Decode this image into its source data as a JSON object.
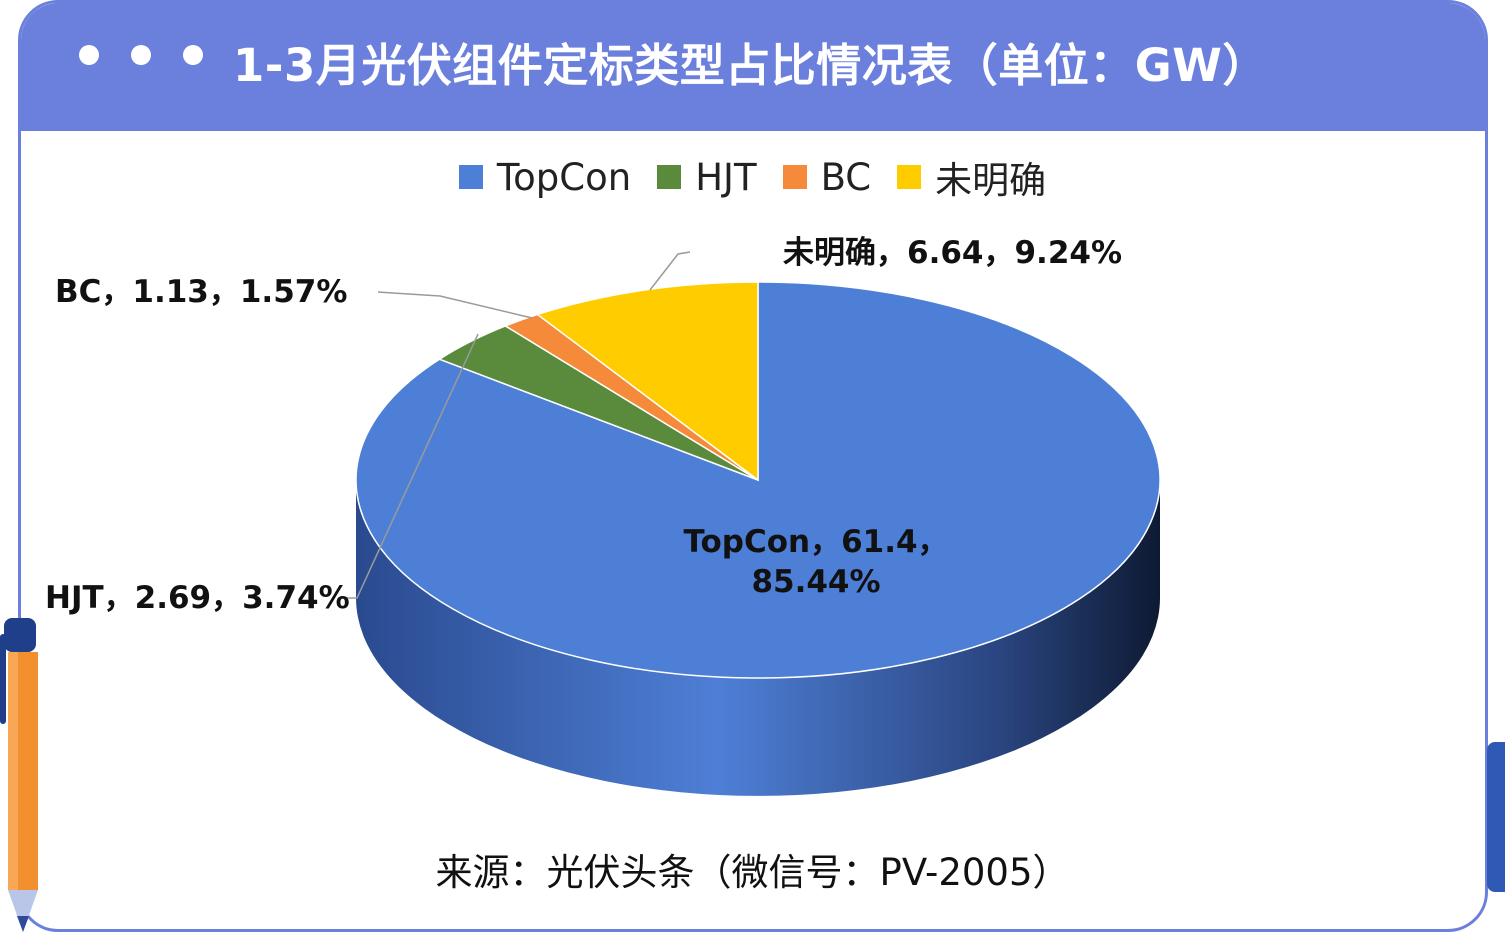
{
  "header": {
    "title": "1-3月光伏组件定标类型占比情况表（单位：GW）"
  },
  "legend": [
    {
      "label": "TopCon",
      "color": "#4e7fd6"
    },
    {
      "label": "HJT",
      "color": "#5a8a3c"
    },
    {
      "label": "BC",
      "color": "#f58a3a"
    },
    {
      "label": "未明确",
      "color": "#ffcc00"
    }
  ],
  "labels": {
    "topcon_line1": "TopCon，61.4，",
    "topcon_line2": "85.44%",
    "hjt": "HJT，2.69，3.74%",
    "bc": "BC，1.13，1.57%",
    "unknown": "未明确，6.64，9.24%"
  },
  "source": "来源：光伏头条（微信号：PV-2005）",
  "chart_data": {
    "type": "pie",
    "title": "1-3月光伏组件定标类型占比情况表（单位：GW）",
    "unit": "GW",
    "categories": [
      "TopCon",
      "HJT",
      "BC",
      "未明确"
    ],
    "values": [
      61.4,
      2.69,
      1.13,
      6.64
    ],
    "percentages": [
      85.44,
      3.74,
      1.57,
      9.24
    ],
    "colors": [
      "#4e7fd6",
      "#5a8a3c",
      "#f58a3a",
      "#ffcc00"
    ],
    "legend_position": "top"
  }
}
